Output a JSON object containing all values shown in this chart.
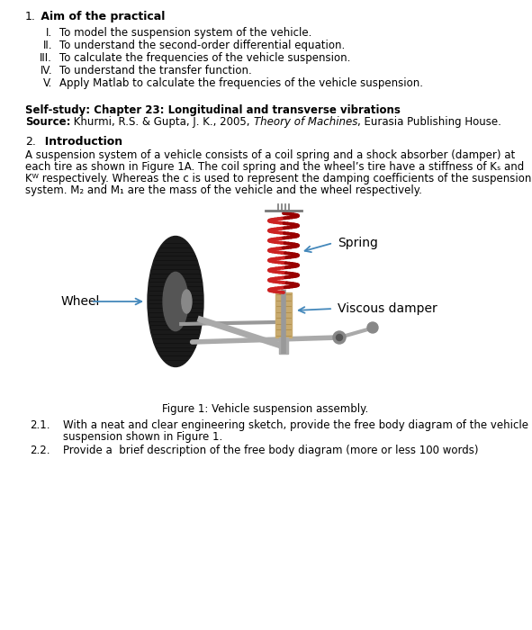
{
  "bg_color": "#ffffff",
  "roman_items": [
    [
      "I.",
      "To model the suspension system of the vehicle."
    ],
    [
      "II.",
      "To understand the second-order differential equation."
    ],
    [
      "III.",
      "To calculate the frequencies of the vehicle suspension."
    ],
    [
      "IV.",
      "To understand the transfer function."
    ],
    [
      "V.",
      "Apply Matlab to calculate the frequencies of the vehicle suspension."
    ]
  ],
  "self_study_bold": "Self-study: Chapter 23: Longitudinal and transverse vibrations",
  "source_line_bold": "Source:",
  "source_line_normal": " Khurmi, R.S. & Gupta, J. K., 2005, ",
  "source_line_italic": "Theory of Machines",
  "source_line_end": ", Eurasia Publishing House.",
  "figure_caption": "Figure 1: Vehicle suspension assembly.",
  "label_spring": "Spring",
  "label_damper": "Viscous damper",
  "label_wheel": "Wheel",
  "q21_num": "2.1.",
  "q21_line1": "With a neat and clear engineering sketch, provide the free body diagram of the vehicle",
  "q21_line2": "suspension shown in Figure 1.",
  "q22_num": "2.2.",
  "q22_text": "Provide a  brief description of the free body diagram (more or less 100 words)",
  "intro_line1": "A suspension system of a vehicle consists of a coil spring and a shock absorber (damper) at",
  "intro_line2": "each tire as shown in Figure 1A. The coil spring and the wheel’s tire have a stiffness of Kₛ and",
  "intro_line3": "Kᵂ respectively. Whereas the c is used to represent the damping coefficients of the suspension",
  "intro_line4": "system. M₂ and M₁ are the mass of the vehicle and the wheel respectively.",
  "arrow_color": "#4488bb",
  "font_size_body": 8.5,
  "font_size_head": 9.0,
  "font_size_label": 10.0
}
